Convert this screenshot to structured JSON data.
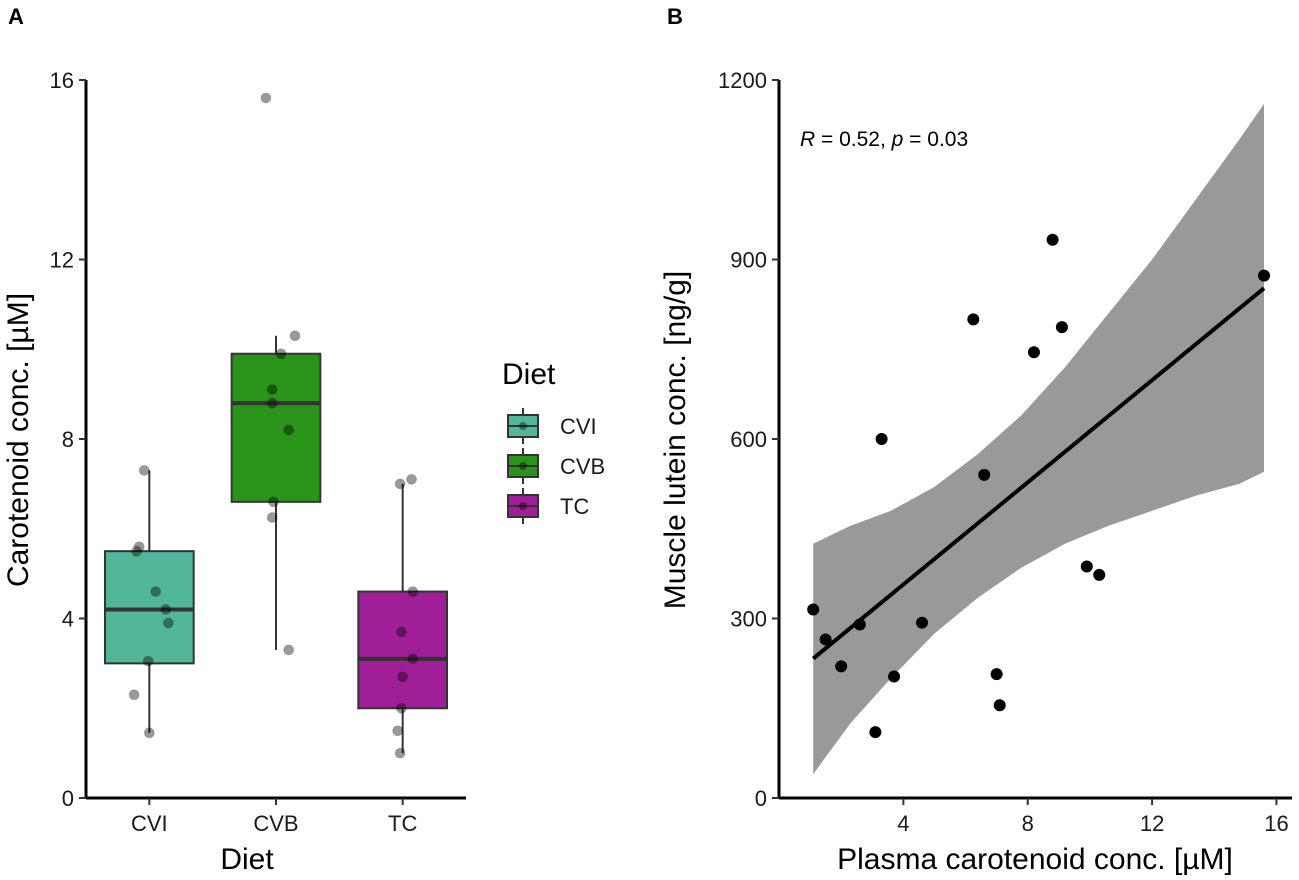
{
  "chart_data": [
    {
      "panel": "A",
      "type": "box",
      "xlabel": "Diet",
      "ylabel": "Carotenoid conc. [µM]",
      "ylim": [
        0,
        16
      ],
      "yticks": [
        0,
        4,
        8,
        12,
        16
      ],
      "categories": [
        "CVI",
        "CVB",
        "TC"
      ],
      "colors": [
        "#52b69a",
        "#2a931a",
        "#a01f98"
      ],
      "boxes": [
        {
          "name": "CVI",
          "whisker_low": 1.45,
          "q1": 3.0,
          "median": 4.2,
          "q3": 5.5,
          "whisker_high": 7.3
        },
        {
          "name": "CVB",
          "whisker_low": 3.3,
          "q1": 6.6,
          "median": 8.8,
          "q3": 9.9,
          "whisker_high": 10.3
        },
        {
          "name": "TC",
          "whisker_low": 1.0,
          "q1": 2.0,
          "median": 3.1,
          "q3": 4.6,
          "whisker_high": 7.0
        }
      ],
      "points": [
        {
          "group": "CVI",
          "values": [
            7.3,
            5.5,
            5.6,
            4.6,
            4.2,
            3.9,
            3.05,
            2.3,
            1.45
          ],
          "jitter": [
            -0.04,
            -0.1,
            -0.08,
            0.05,
            0.13,
            0.15,
            -0.01,
            -0.12,
            0.0
          ]
        },
        {
          "group": "CVB",
          "values": [
            15.6,
            10.3,
            9.9,
            9.1,
            8.8,
            8.2,
            6.6,
            6.25,
            3.3
          ],
          "jitter": [
            -0.08,
            0.15,
            0.04,
            -0.03,
            -0.03,
            0.1,
            -0.02,
            -0.03,
            0.1
          ]
        },
        {
          "group": "TC",
          "values": [
            7.1,
            7.0,
            4.6,
            3.7,
            3.1,
            2.7,
            2.0,
            1.5,
            1.0
          ],
          "jitter": [
            0.07,
            -0.02,
            0.08,
            -0.01,
            0.08,
            0.0,
            -0.01,
            -0.04,
            -0.02
          ]
        }
      ],
      "legend": {
        "title": "Diet",
        "items": [
          "CVI",
          "CVB",
          "TC"
        ]
      }
    },
    {
      "panel": "B",
      "type": "scatter",
      "xlabel": "Plasma carotenoid conc. [µM]",
      "ylabel": "Muscle lutein conc. [ng/g]",
      "xlim": [
        0.0,
        16.5
      ],
      "ylim": [
        0,
        1200
      ],
      "xticks": [
        4,
        8,
        12,
        16
      ],
      "yticks": [
        0,
        300,
        600,
        900,
        1200
      ],
      "points": [
        {
          "x": 1.1,
          "y": 315
        },
        {
          "x": 1.5,
          "y": 265
        },
        {
          "x": 2.0,
          "y": 220
        },
        {
          "x": 2.6,
          "y": 290
        },
        {
          "x": 3.1,
          "y": 110
        },
        {
          "x": 3.3,
          "y": 600
        },
        {
          "x": 3.7,
          "y": 203
        },
        {
          "x": 4.6,
          "y": 293
        },
        {
          "x": 6.25,
          "y": 800
        },
        {
          "x": 6.6,
          "y": 540
        },
        {
          "x": 7.0,
          "y": 207
        },
        {
          "x": 7.1,
          "y": 155
        },
        {
          "x": 8.2,
          "y": 745
        },
        {
          "x": 8.8,
          "y": 933
        },
        {
          "x": 9.1,
          "y": 787
        },
        {
          "x": 9.9,
          "y": 387
        },
        {
          "x": 10.3,
          "y": 373
        },
        {
          "x": 15.6,
          "y": 873
        }
      ],
      "regression": {
        "x": [
          1.1,
          15.6
        ],
        "y": [
          233,
          852
        ]
      },
      "confidence_band": {
        "x": [
          1.1,
          2.3,
          3.6,
          5.0,
          6.4,
          7.8,
          9.2,
          10.6,
          12.0,
          13.4,
          14.8,
          15.6
        ],
        "lower": [
          40,
          125,
          200,
          275,
          335,
          385,
          425,
          455,
          480,
          505,
          525,
          545
        ],
        "upper": [
          425,
          455,
          480,
          520,
          575,
          640,
          720,
          810,
          900,
          1000,
          1100,
          1160
        ]
      },
      "annotation": {
        "R_label": "R",
        "R_text": " = 0.52, ",
        "p_label": "p",
        "p_text": " = 0.03"
      }
    }
  ]
}
